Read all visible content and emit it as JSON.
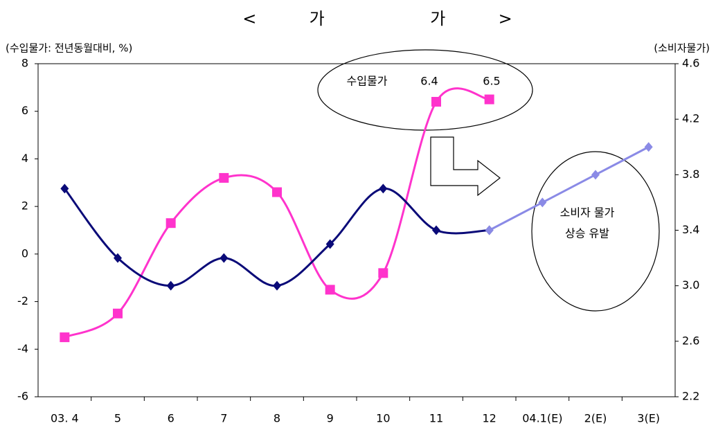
{
  "chart_data": {
    "type": "line",
    "title": "<          가                    가          >",
    "y_label": "(수입물가: 전년동월대비, %)",
    "y2_label": "(소비자물가)",
    "categories": [
      "03. 4",
      "5",
      "6",
      "7",
      "8",
      "9",
      "10",
      "11",
      "12",
      "04.1(E)",
      "2(E)",
      "3(E)"
    ],
    "series": [
      {
        "color": "#ff33cc",
        "marker": "square",
        "values": [
          -3.5,
          -2.5,
          1.3,
          3.2,
          2.6,
          -1.5,
          -0.8,
          6.4,
          6.5,
          null,
          null,
          null
        ]
      },
      {
        "color": "#0a0a78",
        "marker": "diamond",
        "axis": "y2",
        "values": [
          3.7,
          3.2,
          3.0,
          3.2,
          3.0,
          3.3,
          3.7,
          3.4,
          3.4,
          null,
          null,
          null
        ]
      },
      {
        "color": "#8a8ae6",
        "marker": "diamond",
        "axis": "y2",
        "values": [
          null,
          null,
          null,
          null,
          null,
          null,
          null,
          null,
          3.4,
          3.6,
          3.8,
          4.0
        ]
      }
    ],
    "ylim": [
      -6,
      8
    ],
    "yticks": [
      -6,
      -4,
      -2,
      0,
      2,
      4,
      6,
      8
    ],
    "y2lim": [
      2.2,
      4.6
    ],
    "y2ticks": [
      2.2,
      2.6,
      {
        "value": 3,
        "label": "3.0"
      },
      3.4,
      3.8,
      4.2,
      4.6
    ],
    "grid": false,
    "annotations": [
      "수입물가",
      "6.4",
      "6.5",
      "소비자 물가",
      "상승 유발"
    ]
  }
}
